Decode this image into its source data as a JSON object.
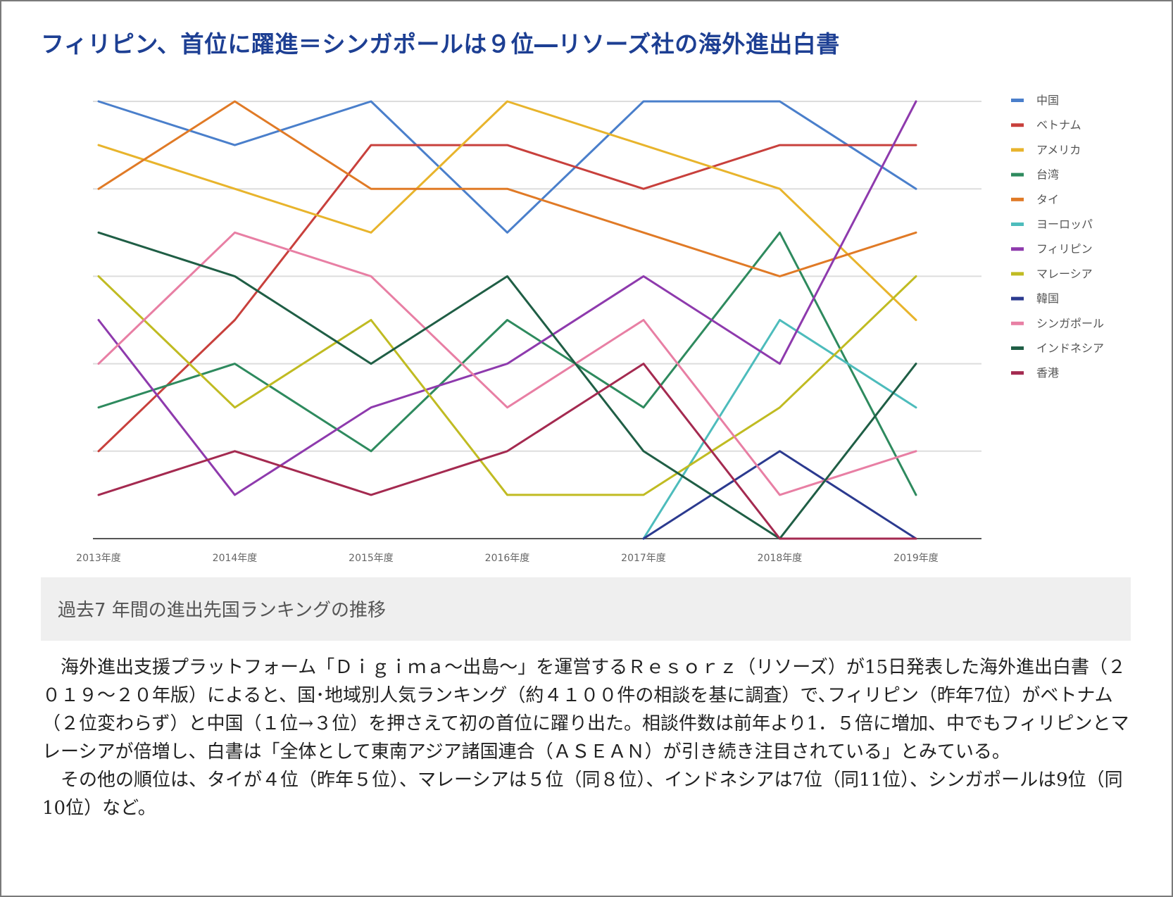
{
  "headline": "フィリピン、首位に躍進＝シンガポールは９位―リソーズ社の海外進出白書",
  "caption": "過去7 年間の進出先国ランキングの推移",
  "paragraphs": [
    "海外進出支援プラットフォーム「Ｄｉｇｉｍａ～出島～」を運営するＲｅｓｏｒｚ（リソーズ）が15日発表した海外進出白書（２０１９～２０年版）によると、国･地域別人気ランキング（約４１００件の相談を基に調査）で､フィリピン（昨年7位）がベトナム（２位変わらず）と中国（１位→３位）を押さえて初の首位に躍り出た。相談件数は前年より1．５倍に増加、中でもフィリピンとマレーシアが倍増し、白書は「全体として東南アジア諸国連合（ＡＳＥＡＮ）が引き続き注目されている」とみている。",
    "その他の順位は、タイが４位（昨年５位）、マレーシアは５位（同８位）、インドネシアは7位（同11位）、シンガポールは9位（同10位）など。"
  ],
  "chart_data": {
    "type": "line",
    "x": [
      "2013年度",
      "2014年度",
      "2015年度",
      "2016年度",
      "2017年度",
      "2018年度",
      "2019年度"
    ],
    "y_reversed": true,
    "ylim": [
      1,
      11
    ],
    "grid": true,
    "legend_position": "right",
    "series": [
      {
        "name": "中国",
        "color": "#4a7fcb",
        "values": [
          1,
          2,
          1,
          4,
          1,
          1,
          3
        ]
      },
      {
        "name": "ベトナム",
        "color": "#c8403c",
        "values": [
          9,
          6,
          2,
          2,
          3,
          2,
          2
        ]
      },
      {
        "name": "アメリカ",
        "color": "#e8b42c",
        "values": [
          2,
          3,
          4,
          1,
          2,
          3,
          6
        ]
      },
      {
        "name": "台湾",
        "color": "#2e8a5e",
        "values": [
          8,
          7,
          9,
          6,
          8,
          4,
          10
        ]
      },
      {
        "name": "タイ",
        "color": "#e07a26",
        "values": [
          3,
          1,
          3,
          3,
          4,
          5,
          4
        ]
      },
      {
        "name": "ヨーロッパ",
        "color": "#4dbcbc",
        "values": [
          null,
          null,
          null,
          null,
          11,
          6,
          8
        ]
      },
      {
        "name": "フィリピン",
        "color": "#8e3aad",
        "values": [
          6,
          10,
          8,
          7,
          5,
          7,
          1
        ]
      },
      {
        "name": "マレーシア",
        "color": "#c0bb22",
        "values": [
          5,
          8,
          6,
          10,
          10,
          8,
          5
        ]
      },
      {
        "name": "韓国",
        "color": "#2b3a8f",
        "values": [
          null,
          null,
          null,
          null,
          11,
          9,
          11
        ]
      },
      {
        "name": "シンガポール",
        "color": "#e87fa4",
        "values": [
          7,
          4,
          5,
          8,
          6,
          10,
          9
        ]
      },
      {
        "name": "インドネシア",
        "color": "#1f5e45",
        "values": [
          4,
          5,
          7,
          5,
          9,
          11,
          7
        ]
      },
      {
        "name": "香港",
        "color": "#a42a50",
        "values": [
          10,
          9,
          10,
          9,
          7,
          11,
          11
        ]
      }
    ]
  }
}
